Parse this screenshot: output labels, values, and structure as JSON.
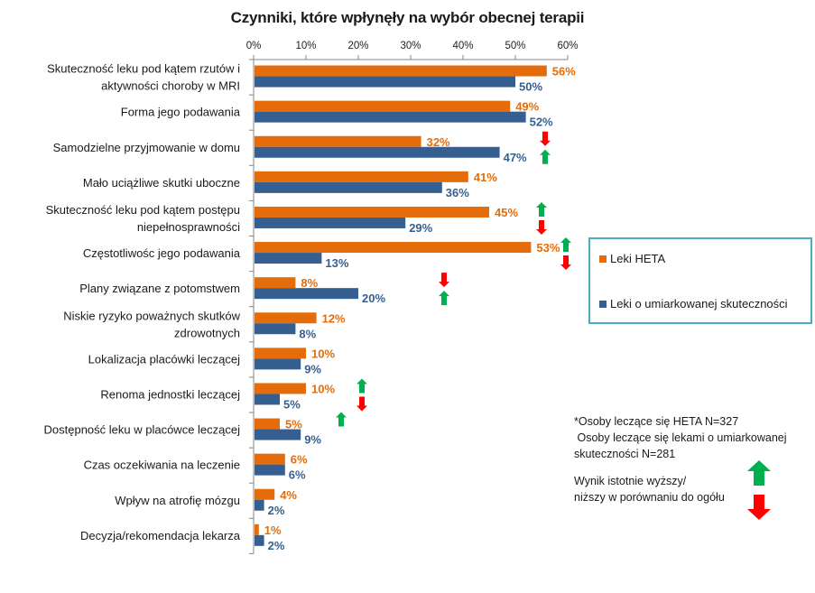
{
  "chart_data": {
    "type": "bar",
    "orientation": "horizontal",
    "title": "Czynniki, które wpłynęły na wybór obecnej terapii",
    "xlim": [
      0,
      60
    ],
    "ticks": [
      "0%",
      "10%",
      "20%",
      "30%",
      "40%",
      "50%",
      "60%"
    ],
    "tick_values": [
      0,
      10,
      20,
      30,
      40,
      50,
      60
    ],
    "categories": [
      [
        "Skuteczność leku pod kątem rzutów i",
        "aktywności choroby w MRI"
      ],
      [
        "Forma jego podawania"
      ],
      [
        "Samodzielne przyjmowanie w domu"
      ],
      [
        "Mało uciążliwe skutki uboczne"
      ],
      [
        "Skuteczność leku pod kątem postępu",
        "niepełnosprawności"
      ],
      [
        "Częstotliwośc jego podawania"
      ],
      [
        "Plany związane z potomstwem"
      ],
      [
        "Niskie ryzyko poważnych skutków",
        "zdrowotnych"
      ],
      [
        "Lokalizacja placówki leczącej"
      ],
      [
        "Renoma jednostki leczącej"
      ],
      [
        "Dostępność leku w placówce leczącej"
      ],
      [
        "Czas oczekiwania na leczenie"
      ],
      [
        "Wpływ na atrofię mózgu"
      ],
      [
        "Decyzja/rekomendacja lekarza"
      ]
    ],
    "series": [
      {
        "name": "Leki HETA",
        "color": "#E46C0A",
        "values": [
          56,
          49,
          32,
          41,
          45,
          53,
          8,
          12,
          10,
          10,
          5,
          6,
          4,
          1
        ],
        "labels": [
          "56%",
          "49%",
          "32%",
          "41%",
          "45%",
          "53%",
          "8%",
          "12%",
          "10%",
          "10%",
          "5%",
          "6%",
          "4%",
          "1%"
        ],
        "significance": [
          null,
          null,
          "down",
          null,
          "up",
          "up",
          "down",
          null,
          null,
          "up",
          null,
          null,
          null,
          null
        ]
      },
      {
        "name": "Leki o umiarkowanej skuteczności",
        "color": "#365F91",
        "values": [
          50,
          52,
          47,
          36,
          29,
          13,
          20,
          8,
          9,
          5,
          9,
          6,
          2,
          2
        ],
        "labels": [
          "50%",
          "52%",
          "47%",
          "36%",
          "29%",
          "13%",
          "20%",
          "8%",
          "9%",
          "5%",
          "9%",
          "6%",
          "2%",
          "2%"
        ],
        "significance": [
          null,
          null,
          "up",
          null,
          "down",
          "down",
          "up",
          null,
          null,
          "down",
          "up",
          null,
          null,
          null
        ]
      }
    ],
    "legend_position": "right"
  },
  "notes": {
    "line1": "*Osoby leczące się HETA N=327",
    "line2": " Osoby leczące się lekami o umiarkowanej",
    "line3": "skuteczności N=281"
  },
  "significance_legend": {
    "line1": "Wynik istotnie wyższy/",
    "line2": "niższy w porównaniu do ogółu",
    "up_color": "#00B050",
    "down_color": "#FF0000"
  }
}
